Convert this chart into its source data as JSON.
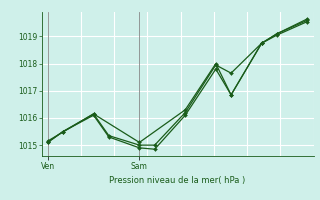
{
  "background_color": "#cff0ea",
  "grid_color": "#ffffff",
  "line_color": "#1a5c1a",
  "marker_color": "#1a5c1a",
  "axis_color": "#1a5c1a",
  "text_color": "#1a5c1a",
  "xlabel": "Pression niveau de la mer( hPa )",
  "ylim": [
    1014.6,
    1019.9
  ],
  "yticks": [
    1015,
    1016,
    1017,
    1018,
    1019
  ],
  "ven_x": 0,
  "sam_x": 3,
  "n_xgrid": 9,
  "series1": {
    "x": [
      0,
      0.5,
      1.5,
      2.0,
      3.0,
      3.5,
      4.5,
      5.5,
      6.0,
      7.0,
      7.5,
      8.5
    ],
    "y": [
      1015.1,
      1015.5,
      1016.1,
      1015.3,
      1014.9,
      1014.85,
      1016.1,
      1017.8,
      1016.85,
      1018.75,
      1019.05,
      1019.55
    ]
  },
  "series2": {
    "x": [
      0,
      0.5,
      1.5,
      2.0,
      3.0,
      3.5,
      4.5,
      5.5,
      6.0,
      7.0,
      7.5,
      8.5
    ],
    "y": [
      1015.1,
      1015.5,
      1016.15,
      1015.35,
      1015.0,
      1015.0,
      1016.2,
      1017.95,
      1017.65,
      1018.75,
      1019.1,
      1019.6
    ]
  },
  "series3": {
    "x": [
      0,
      1.5,
      3.0,
      4.5,
      5.5,
      6.0,
      7.0,
      7.5,
      8.5
    ],
    "y": [
      1015.15,
      1016.15,
      1015.1,
      1016.3,
      1018.0,
      1016.85,
      1018.75,
      1019.1,
      1019.65
    ]
  },
  "xlim": [
    -0.2,
    8.7
  ],
  "day_line_color": "#888888",
  "figsize": [
    3.2,
    2.0
  ],
  "dpi": 100
}
